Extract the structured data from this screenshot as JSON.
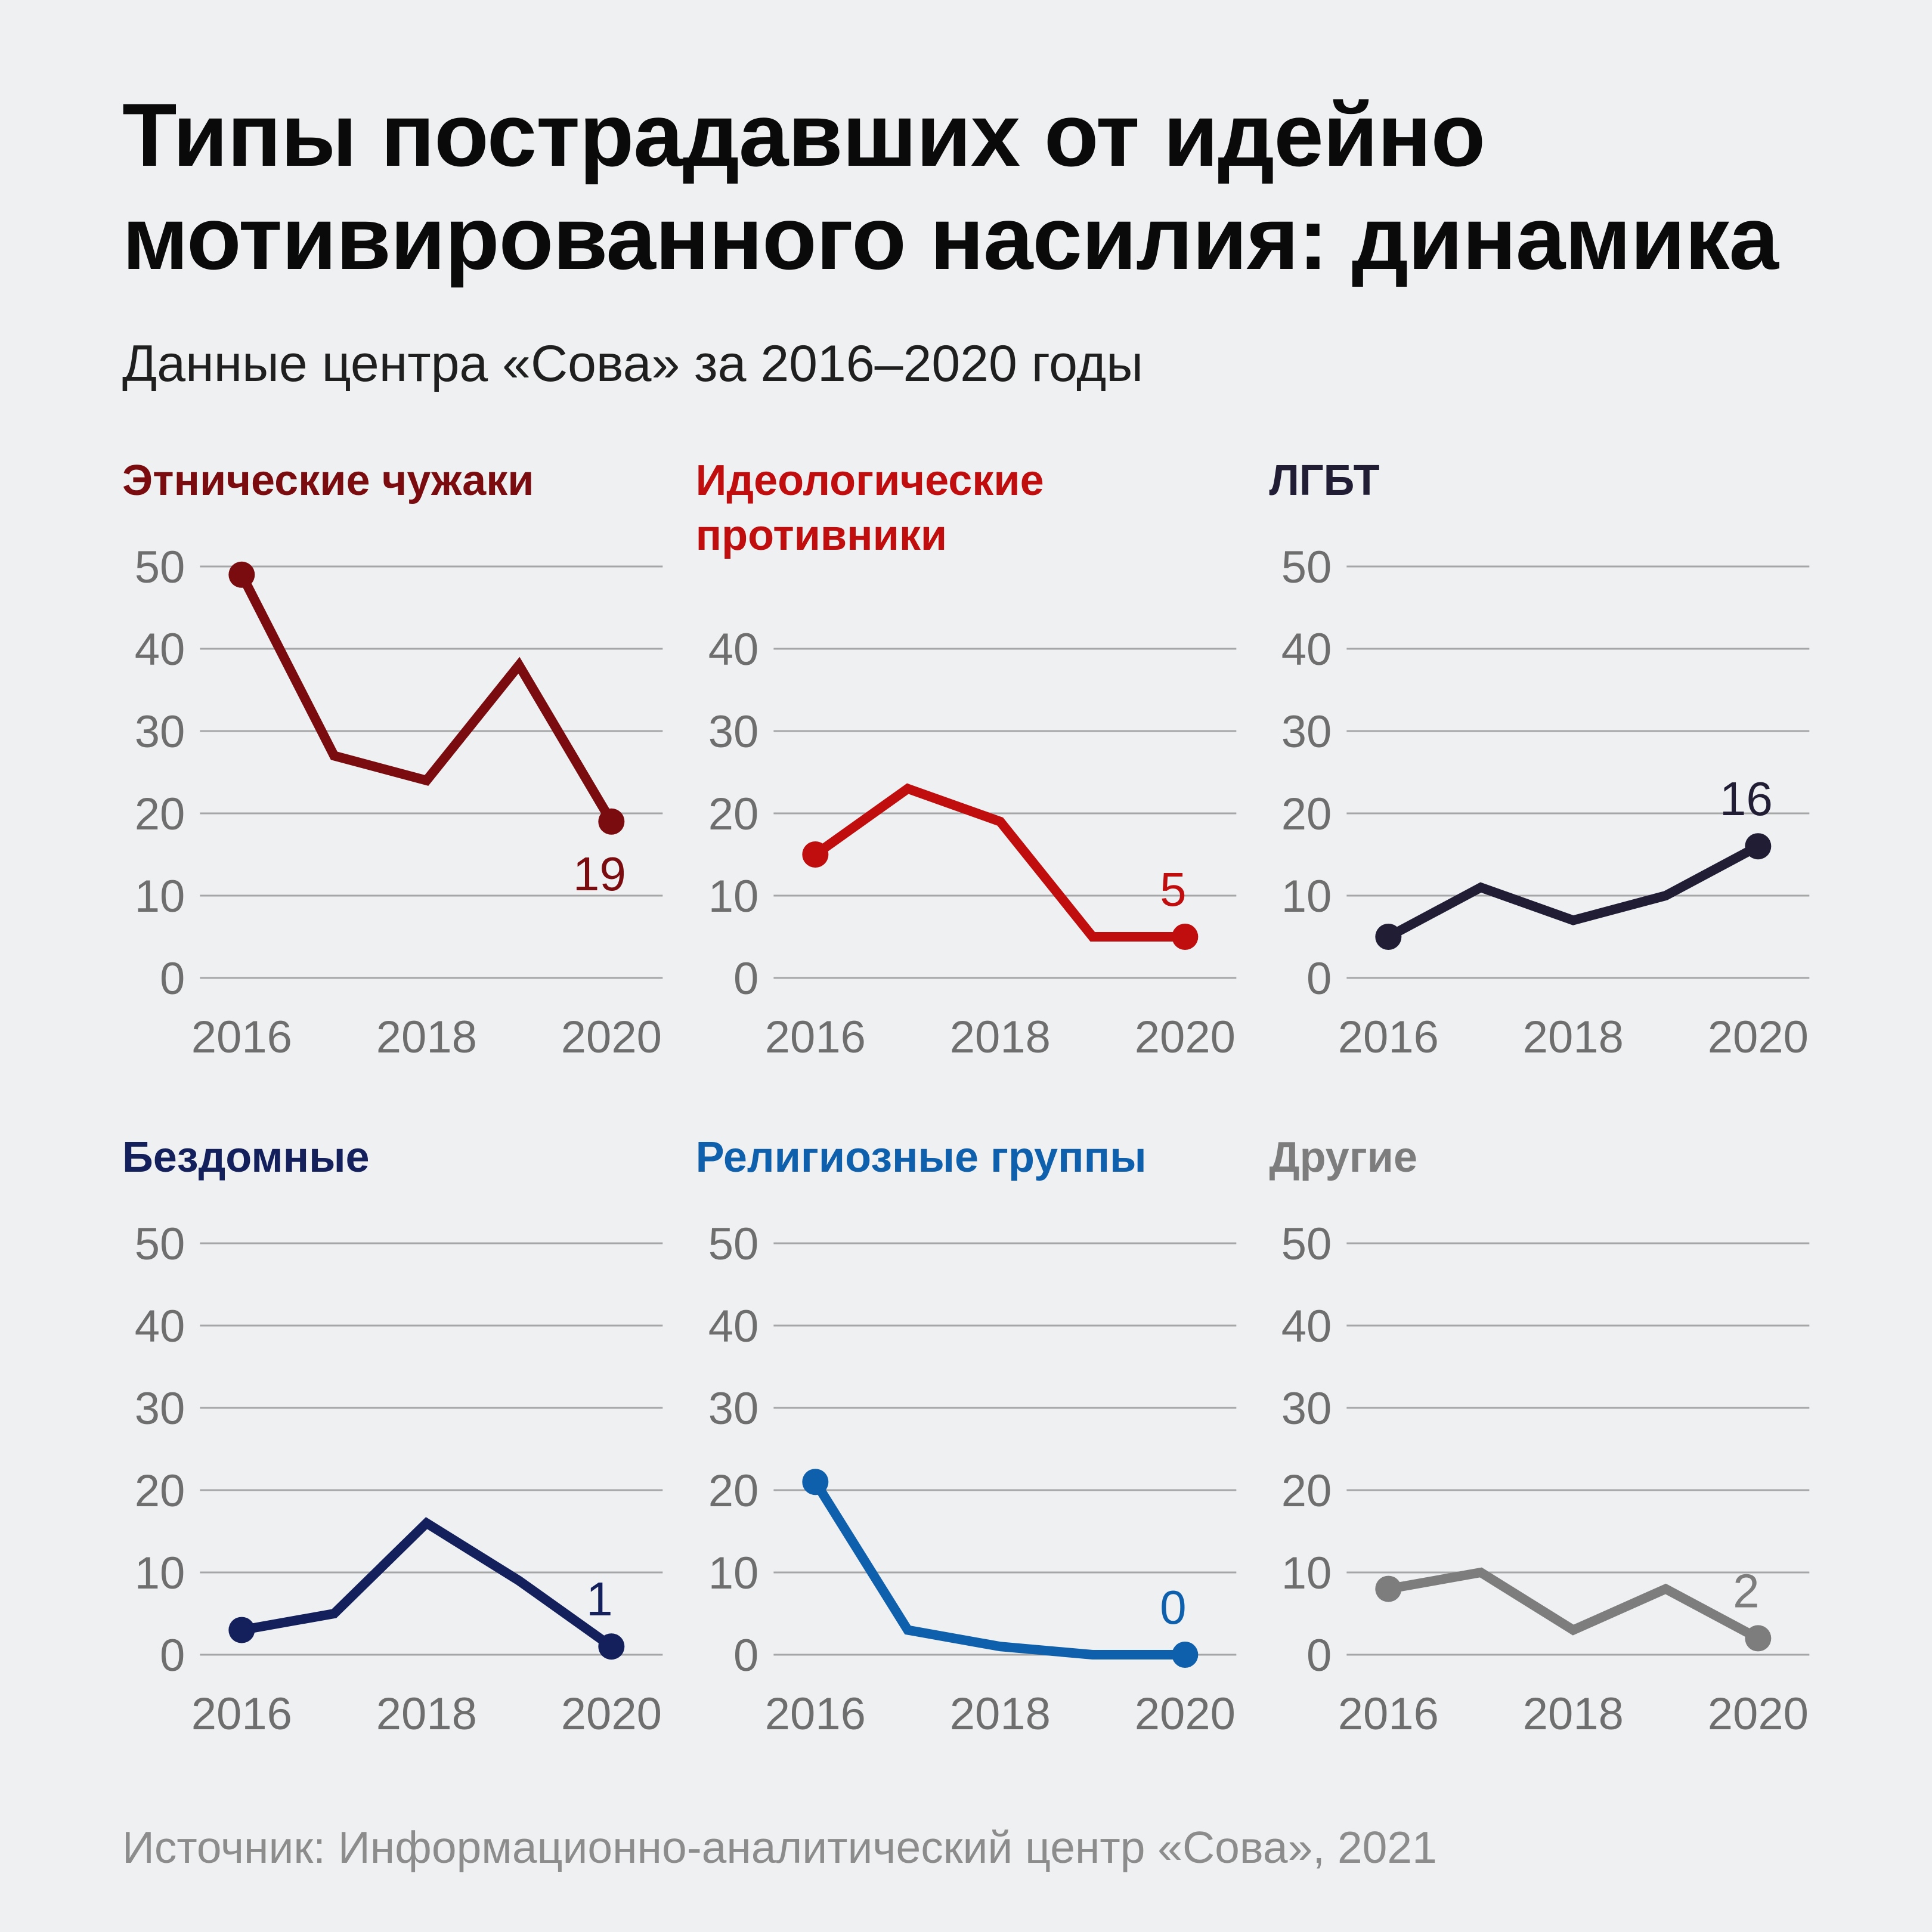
{
  "header": {
    "title": "Типы пострадавших от идейно мотивированного насилия: динамика",
    "subtitle": "Данные центра «Сова» за 2016–2020 годы"
  },
  "footer": {
    "source": "Источник: Информационно-аналитический центр «Сова», 2021"
  },
  "colors": {
    "background": "#eef0f2",
    "title_text": "#0a0a0a",
    "subtitle_text": "#1f1f1f",
    "axis_text": "#6e6e6e",
    "grid_line": "#a6a6a6",
    "source_text": "#8c8c8c"
  },
  "chart_data": [
    {
      "type": "line",
      "title": "Этнические чужаки",
      "color": "#7a0c10",
      "x": [
        2016,
        2017,
        2018,
        2019,
        2020
      ],
      "values": [
        49,
        27,
        24,
        38,
        19
      ],
      "ylim": [
        0,
        50
      ],
      "yticks": [
        0,
        10,
        20,
        30,
        40,
        50
      ],
      "xticks": [
        2016,
        2018,
        2020
      ],
      "last_label": "19",
      "label_position": "below"
    },
    {
      "type": "line",
      "title": "Идеологические противники",
      "color": "#c00d0e",
      "x": [
        2016,
        2017,
        2018,
        2019,
        2020
      ],
      "values": [
        15,
        23,
        19,
        5,
        5
      ],
      "ylim": [
        0,
        50
      ],
      "yticks": [
        0,
        10,
        20,
        30,
        40
      ],
      "xticks": [
        2016,
        2018,
        2020
      ],
      "last_label": "5",
      "label_position": "above"
    },
    {
      "type": "line",
      "title": "ЛГБТ",
      "color": "#211d35",
      "x": [
        2016,
        2017,
        2018,
        2019,
        2020
      ],
      "values": [
        5,
        11,
        7,
        10,
        16
      ],
      "ylim": [
        0,
        50
      ],
      "yticks": [
        0,
        10,
        20,
        30,
        40,
        50
      ],
      "xticks": [
        2016,
        2018,
        2020
      ],
      "last_label": "16",
      "label_position": "above"
    },
    {
      "type": "line",
      "title": "Бездомные",
      "color": "#14205b",
      "x": [
        2016,
        2017,
        2018,
        2019,
        2020
      ],
      "values": [
        3,
        5,
        16,
        9,
        1
      ],
      "ylim": [
        0,
        50
      ],
      "yticks": [
        0,
        10,
        20,
        30,
        40,
        50
      ],
      "xticks": [
        2016,
        2018,
        2020
      ],
      "last_label": "1",
      "label_position": "above"
    },
    {
      "type": "line",
      "title": "Религиозные группы",
      "color": "#0f60ac",
      "x": [
        2016,
        2017,
        2018,
        2019,
        2020
      ],
      "values": [
        21,
        3,
        1,
        0,
        0
      ],
      "ylim": [
        0,
        50
      ],
      "yticks": [
        0,
        10,
        20,
        30,
        40,
        50
      ],
      "xticks": [
        2016,
        2018,
        2020
      ],
      "last_label": "0",
      "label_position": "above"
    },
    {
      "type": "line",
      "title": "Другие",
      "color": "#7d7d7d",
      "x": [
        2016,
        2017,
        2018,
        2019,
        2020
      ],
      "values": [
        8,
        10,
        3,
        8,
        2
      ],
      "ylim": [
        0,
        50
      ],
      "yticks": [
        0,
        10,
        20,
        30,
        40,
        50
      ],
      "xticks": [
        2016,
        2018,
        2020
      ],
      "last_label": "2",
      "label_position": "above"
    }
  ]
}
